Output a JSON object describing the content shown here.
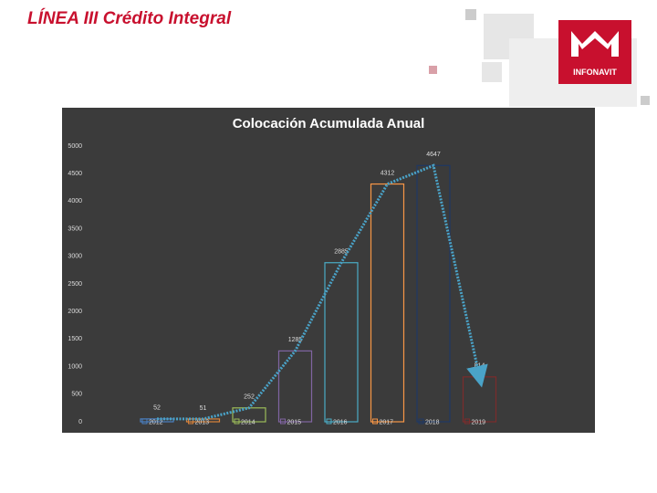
{
  "header": {
    "title": "LÍNEA III Crédito Integral",
    "logo_text": "INFONAVIT"
  },
  "chart_data": {
    "type": "bar",
    "title": "Colocación Acumulada Anual",
    "categories": [
      "2012",
      "2013",
      "2014",
      "2015",
      "2016",
      "2017",
      "2018",
      "2019"
    ],
    "values": [
      52,
      51,
      252,
      1285,
      2885,
      4312,
      4647,
      814
    ],
    "colors": [
      "#4a7fc1",
      "#d9823b",
      "#9bbb59",
      "#8064a2",
      "#4bacc6",
      "#f79646",
      "#1f3864",
      "#7b2c2c"
    ],
    "line_overlay": true,
    "line_color": "#4aa3c8",
    "ylim": [
      0,
      5000
    ],
    "yticks": [
      0,
      500,
      1000,
      1500,
      2000,
      2500,
      3000,
      3500,
      4000,
      4500,
      5000
    ]
  }
}
